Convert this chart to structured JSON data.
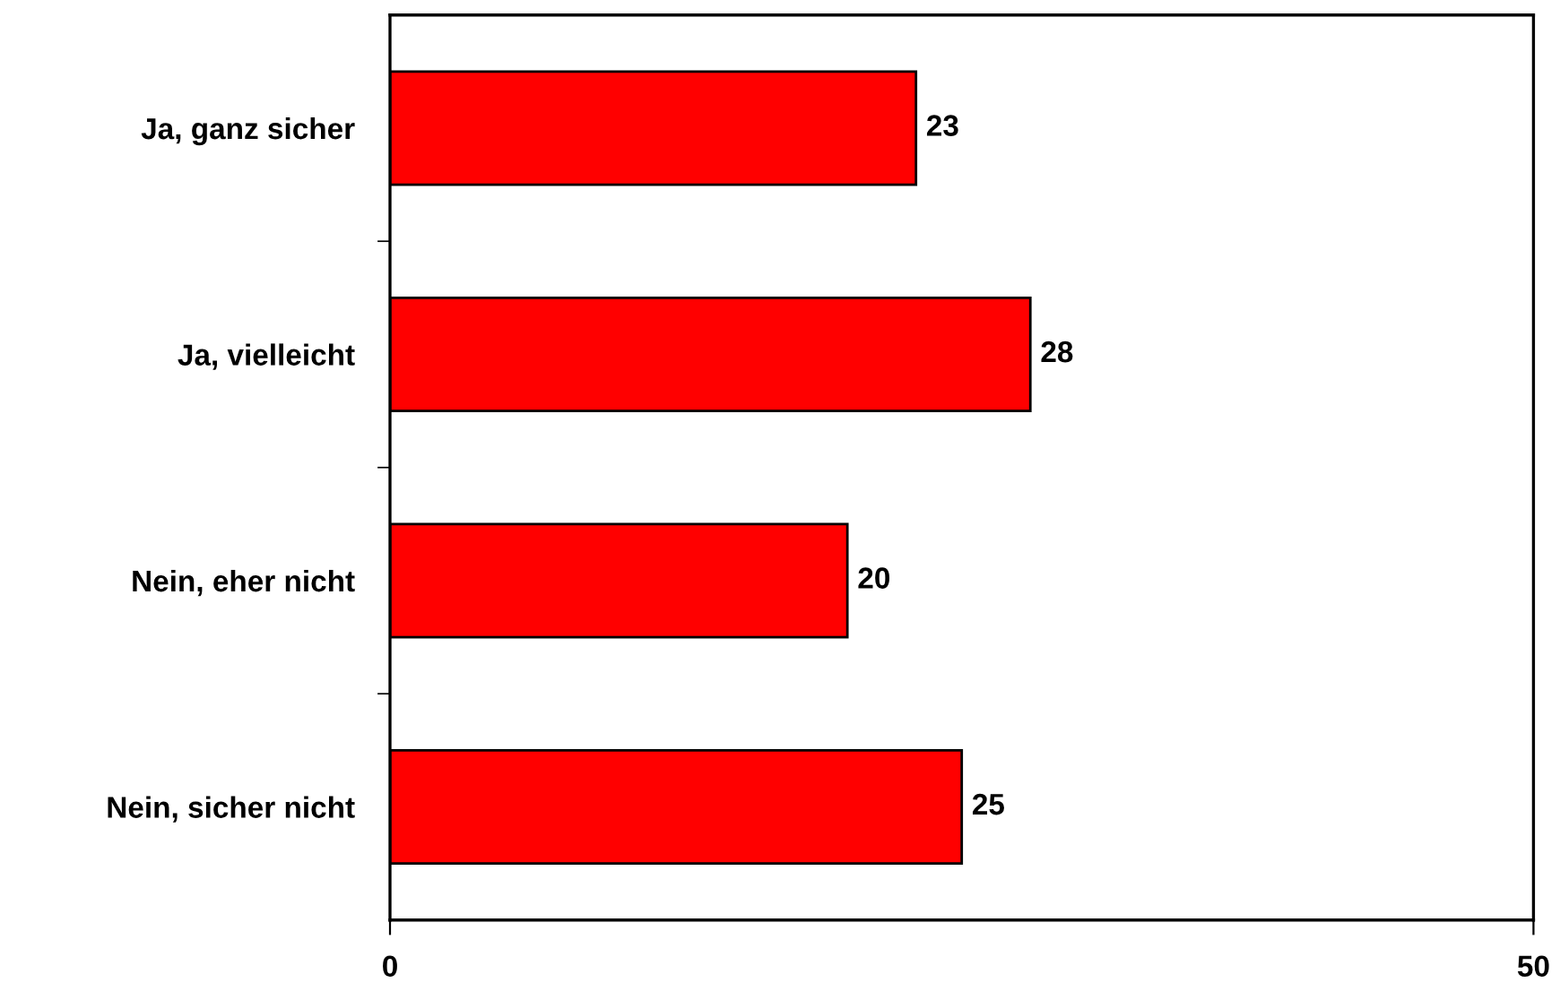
{
  "chart_data": {
    "type": "bar",
    "orientation": "horizontal",
    "categories": [
      "Ja, ganz sicher",
      "Ja, vielleicht",
      "Nein, eher nicht",
      "Nein, sicher nicht"
    ],
    "values": [
      23,
      28,
      20,
      25
    ],
    "color": "#ff0000",
    "xlim": [
      0,
      50
    ],
    "xticks": [
      0,
      50
    ],
    "data_labels": true
  }
}
